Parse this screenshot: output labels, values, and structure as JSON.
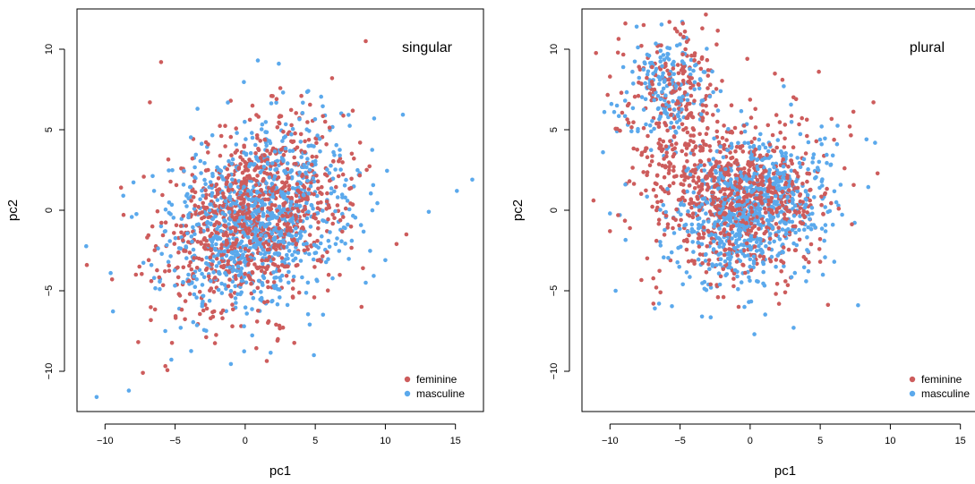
{
  "colors": {
    "feminine": "#cd5c5c",
    "masculine": "#5ba9ec"
  },
  "chart_data": [
    {
      "type": "scatter",
      "title": "singular",
      "xlabel": "pc1",
      "ylabel": "pc2",
      "xlim": [
        -12,
        17
      ],
      "ylim": [
        -12.5,
        12.5
      ],
      "xticks": [
        -10,
        -5,
        0,
        5,
        10,
        15
      ],
      "yticks": [
        -10,
        -5,
        0,
        5,
        10
      ],
      "xtick_labels": [
        "−10",
        "−5",
        "0",
        "5",
        "10",
        "15"
      ],
      "ytick_labels": [
        "−10",
        "−5",
        "0",
        "5",
        "10"
      ],
      "legend_position": "bottom-right",
      "legend": [
        "feminine",
        "masculine"
      ],
      "distribution": {
        "feminine": {
          "n": 950,
          "center": [
            0.7,
            -0.3
          ],
          "sd": [
            3.2,
            2.9
          ],
          "corr": 0.3
        },
        "masculine": {
          "n": 950,
          "center": [
            0.9,
            -0.5
          ],
          "sd": [
            3.3,
            2.8
          ],
          "corr": 0.3
        }
      },
      "series": [
        {
          "name": "feminine",
          "points": [
            [
              8.6,
              10.5
            ],
            [
              -6,
              9.2
            ],
            [
              -6.8,
              6.7
            ],
            [
              6.2,
              8.2
            ],
            [
              11.5,
              -1.5
            ],
            [
              10.8,
              -2.1
            ],
            [
              8.4,
              -3.6
            ],
            [
              8.3,
              -6
            ],
            [
              2.3,
              -8.1
            ],
            [
              -7.3,
              -10.1
            ],
            [
              -11.3,
              -3.4
            ],
            [
              -7.8,
              -4
            ],
            [
              -6.7,
              -4.4
            ]
          ]
        },
        {
          "name": "masculine",
          "points": [
            [
              0.9,
              9.3
            ],
            [
              2.4,
              9.1
            ],
            [
              4.5,
              7.4
            ],
            [
              16.2,
              1.9
            ],
            [
              15.1,
              1.2
            ],
            [
              13.1,
              -0.1
            ],
            [
              9.2,
              5.7
            ],
            [
              10,
              -3.1
            ],
            [
              8.6,
              -4.5
            ],
            [
              4.9,
              -9
            ],
            [
              4.6,
              -7.1
            ],
            [
              -4.6,
              -7.3
            ],
            [
              -5.7,
              -7.5
            ],
            [
              -8.3,
              -11.2
            ],
            [
              -10.6,
              -11.6
            ],
            [
              -9.6,
              -3.9
            ],
            [
              -8.7,
              0.9
            ],
            [
              -6.5,
              1.2
            ],
            [
              -6.1,
              -4.9
            ],
            [
              -3.4,
              6.3
            ]
          ]
        }
      ]
    },
    {
      "type": "scatter",
      "title": "plural",
      "xlabel": "pc1",
      "ylabel": "pc2",
      "xlim": [
        -12,
        17
      ],
      "ylim": [
        -12.5,
        12.5
      ],
      "xticks": [
        -10,
        -5,
        0,
        5,
        10,
        15
      ],
      "yticks": [
        -10,
        -5,
        0,
        5,
        10
      ],
      "xtick_labels": [
        "−10",
        "−5",
        "0",
        "5",
        "10",
        "15"
      ],
      "ytick_labels": [
        "−10",
        "−5",
        "0",
        "5",
        "10"
      ],
      "legend_position": "bottom-right",
      "legend": [
        "feminine",
        "masculine"
      ],
      "distribution": {
        "feminine": {
          "n": 800,
          "center": [
            -1.0,
            0.9
          ],
          "sd": [
            3.0,
            2.4
          ],
          "corr": 0.0,
          "cluster": {
            "n": 220,
            "center": [
              -5.5,
              7.0
            ],
            "sd": [
              1.8,
              2.2
            ]
          }
        },
        "masculine": {
          "n": 800,
          "center": [
            0.0,
            -0.1
          ],
          "sd": [
            2.6,
            2.2
          ],
          "corr": 0.25,
          "cluster": {
            "n": 180,
            "center": [
              -6.0,
              7.8
            ],
            "sd": [
              1.5,
              1.8
            ]
          }
        }
      },
      "series": [
        {
          "name": "feminine",
          "points": [
            [
              -8.9,
              11.6
            ],
            [
              -7.6,
              11.5
            ],
            [
              -4.8,
              11.6
            ],
            [
              -6.6,
              10.2
            ],
            [
              -10,
              8.3
            ],
            [
              -10,
              -1.3
            ],
            [
              8.8,
              6.7
            ],
            [
              4.9,
              8.6
            ],
            [
              7.1,
              5.2
            ],
            [
              2.3,
              8.1
            ],
            [
              -0.2,
              9.4
            ],
            [
              5,
              -3.2
            ],
            [
              2.5,
              -5.1
            ],
            [
              -2.3,
              -5.4
            ],
            [
              -6.7,
              -4.8
            ],
            [
              -6.4,
              -5.1
            ],
            [
              -6.9,
              -5.8
            ]
          ]
        },
        {
          "name": "masculine",
          "points": [
            [
              -8.1,
              11.4
            ],
            [
              -7.2,
              9.6
            ],
            [
              -8.4,
              8.6
            ],
            [
              -9.9,
              6.6
            ],
            [
              -9.5,
              6.5
            ],
            [
              -9.7,
              6.1
            ],
            [
              -10.4,
              6.1
            ],
            [
              -9.5,
              4.9
            ],
            [
              -10.5,
              3.6
            ],
            [
              -8.9,
              1.6
            ],
            [
              -10,
              -0.2
            ],
            [
              -9.3,
              -0.3
            ],
            [
              -6.8,
              -6.1
            ],
            [
              -6.5,
              -5.8
            ],
            [
              -4.8,
              -4.6
            ],
            [
              -9.6,
              -5
            ],
            [
              0.3,
              -7.7
            ],
            [
              3.1,
              -7.3
            ],
            [
              6,
              -3.2
            ],
            [
              6.2,
              4.1
            ],
            [
              2.4,
              7.7
            ],
            [
              5.1,
              5.2
            ],
            [
              5.1,
              4.1
            ],
            [
              5.9,
              3.4
            ],
            [
              8.3,
              4.4
            ],
            [
              7.7,
              -5.9
            ],
            [
              5.9,
              -0.9
            ]
          ]
        }
      ]
    }
  ]
}
